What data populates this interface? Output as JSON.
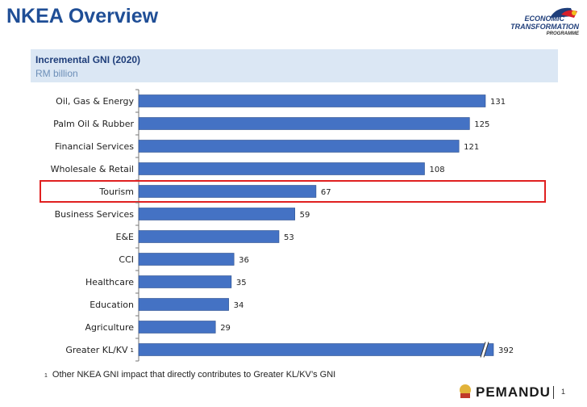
{
  "page_title": "NKEA Overview",
  "logo": {
    "line1": "ECONOMIC",
    "line2": "TRANSFORMATION",
    "line3": "PROGRAMME"
  },
  "chart_data": {
    "type": "bar",
    "orientation": "horizontal",
    "title": "Incremental GNI (2020)",
    "subtitle": "RM billion",
    "categories": [
      "Oil, Gas & Energy",
      "Palm Oil & Rubber",
      "Financial Services",
      "Wholesale & Retail",
      "Tourism",
      "Business Services",
      "E&E",
      "CCI",
      "Healthcare",
      "Education",
      "Agriculture",
      "Greater KL/KV"
    ],
    "values": [
      131,
      125,
      121,
      108,
      67,
      59,
      53,
      36,
      35,
      34,
      29,
      392
    ],
    "category_superscripts": {
      "Greater KL/KV": "1"
    },
    "bar_color": "#4472c4",
    "highlight_color": "#e02020",
    "highlight_category": "Tourism",
    "axis_break_category": "Greater KL/KV",
    "grid": false,
    "legend": "none"
  },
  "footnote": {
    "marker": "1",
    "text": "Other NKEA GNI impact that directly contributes to Greater KL/KV’s GNI"
  },
  "footer": {
    "brand": "PEMANDU",
    "page_number": "1"
  }
}
